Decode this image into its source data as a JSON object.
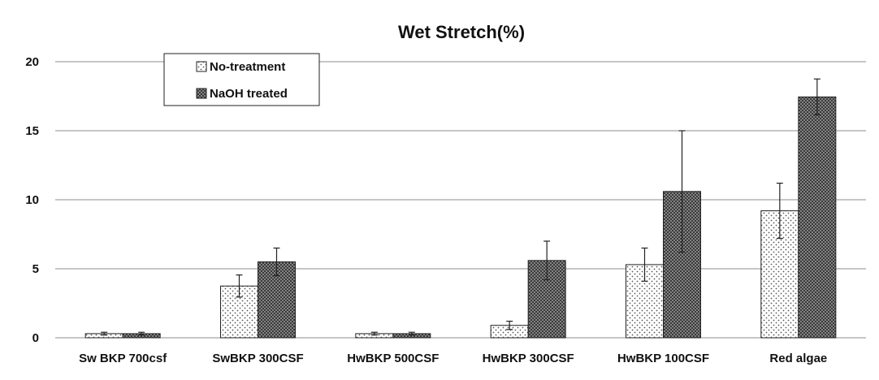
{
  "chart_data": {
    "type": "bar",
    "title": "Wet Stretch(%)",
    "xlabel": "",
    "ylabel": "",
    "ylim": [
      0,
      20
    ],
    "yticks": [
      0,
      5,
      10,
      15,
      20
    ],
    "grid": true,
    "legend_position": "top-left",
    "categories": [
      "Sw BKP 700csf",
      "SwBKP 300CSF",
      "HwBKP 500CSF",
      "HwBKP 300CSF",
      "HwBKP 100CSF",
      "Red algae"
    ],
    "series": [
      {
        "name": "No-treatment",
        "pattern": "light-dots",
        "values": [
          0.3,
          3.75,
          0.3,
          0.9,
          5.3,
          9.2
        ],
        "errors": [
          0.1,
          0.8,
          0.1,
          0.3,
          1.2,
          2.0
        ]
      },
      {
        "name": "NaOH treated",
        "pattern": "dark-crosshatch",
        "values": [
          0.3,
          5.5,
          0.3,
          5.6,
          10.6,
          17.45
        ],
        "errors": [
          0.1,
          1.0,
          0.1,
          1.4,
          4.4,
          1.3
        ]
      }
    ]
  }
}
